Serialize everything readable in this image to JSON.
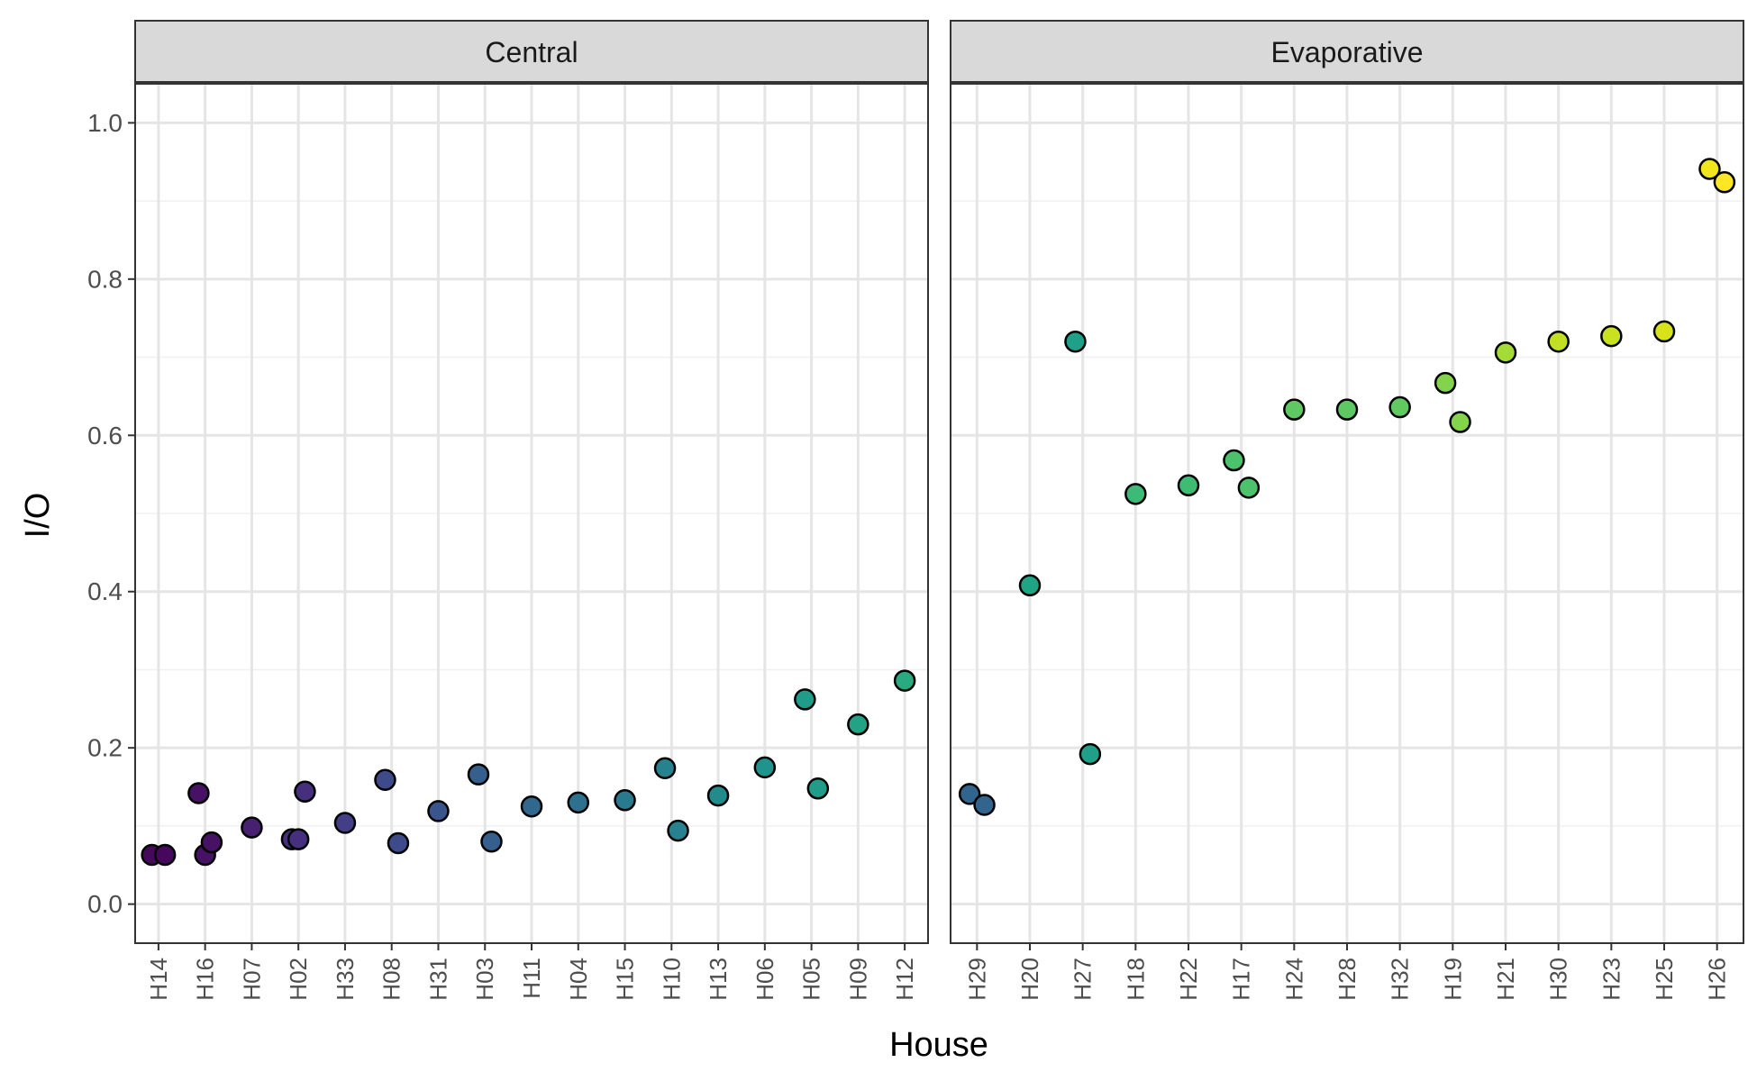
{
  "chart_data": {
    "type": "scatter",
    "xlabel": "House",
    "ylabel": "I/O",
    "ylim": [
      -0.05,
      1.05
    ],
    "y_ticks": [
      "0.0",
      "0.2",
      "0.4",
      "0.6",
      "0.8",
      "1.0"
    ],
    "grid": true,
    "legend": "none",
    "color_scale": "viridis",
    "panels": [
      {
        "name": "Central",
        "categories": [
          "H14",
          "H16",
          "H07",
          "H02",
          "H33",
          "H08",
          "H31",
          "H03",
          "H11",
          "H04",
          "H15",
          "H10",
          "H13",
          "H06",
          "H05",
          "H09",
          "H12"
        ],
        "points": [
          {
            "house": "H14",
            "y": 0.063,
            "color": "#46085c"
          },
          {
            "house": "H14",
            "y": 0.063,
            "color": "#46085c"
          },
          {
            "house": "H16",
            "y": 0.142,
            "color": "#471164"
          },
          {
            "house": "H16",
            "y": 0.063,
            "color": "#471164"
          },
          {
            "house": "H16",
            "y": 0.079,
            "color": "#471164"
          },
          {
            "house": "H07",
            "y": 0.098,
            "color": "#482071"
          },
          {
            "house": "H02",
            "y": 0.083,
            "color": "#46307e"
          },
          {
            "house": "H02",
            "y": 0.083,
            "color": "#46307e"
          },
          {
            "house": "H02",
            "y": 0.144,
            "color": "#46307e"
          },
          {
            "house": "H33",
            "y": 0.104,
            "color": "#433e85"
          },
          {
            "house": "H08",
            "y": 0.159,
            "color": "#3f4a8a"
          },
          {
            "house": "H08",
            "y": 0.078,
            "color": "#3f4a8a"
          },
          {
            "house": "H31",
            "y": 0.119,
            "color": "#3a548c"
          },
          {
            "house": "H03",
            "y": 0.166,
            "color": "#355f8d"
          },
          {
            "house": "H03",
            "y": 0.08,
            "color": "#355f8d"
          },
          {
            "house": "H11",
            "y": 0.125,
            "color": "#31688e"
          },
          {
            "house": "H04",
            "y": 0.13,
            "color": "#2d718e"
          },
          {
            "house": "H15",
            "y": 0.133,
            "color": "#2a7a8e"
          },
          {
            "house": "H10",
            "y": 0.174,
            "color": "#26828e"
          },
          {
            "house": "H10",
            "y": 0.094,
            "color": "#26828e"
          },
          {
            "house": "H13",
            "y": 0.139,
            "color": "#228c8d"
          },
          {
            "house": "H06",
            "y": 0.175,
            "color": "#1f948c"
          },
          {
            "house": "H05",
            "y": 0.262,
            "color": "#1f9d8a"
          },
          {
            "house": "H05",
            "y": 0.148,
            "color": "#1f9d8a"
          },
          {
            "house": "H09",
            "y": 0.23,
            "color": "#23a385"
          },
          {
            "house": "H12",
            "y": 0.286,
            "color": "#2aaa80"
          }
        ]
      },
      {
        "name": "Evaporative",
        "categories": [
          "H29",
          "H20",
          "H27",
          "H18",
          "H22",
          "H17",
          "H24",
          "H28",
          "H32",
          "H19",
          "H21",
          "H30",
          "H23",
          "H25",
          "H26"
        ],
        "points": [
          {
            "house": "H29",
            "y": 0.141,
            "color": "#32658e"
          },
          {
            "house": "H29",
            "y": 0.127,
            "color": "#32658e"
          },
          {
            "house": "H20",
            "y": 0.408,
            "color": "#20a486"
          },
          {
            "house": "H27",
            "y": 0.72,
            "color": "#1fa088"
          },
          {
            "house": "H27",
            "y": 0.192,
            "color": "#1fa088"
          },
          {
            "house": "H18",
            "y": 0.525,
            "color": "#3bbb75"
          },
          {
            "house": "H22",
            "y": 0.536,
            "color": "#3fbc73"
          },
          {
            "house": "H17",
            "y": 0.568,
            "color": "#4cc26c"
          },
          {
            "house": "H17",
            "y": 0.533,
            "color": "#4cc26c"
          },
          {
            "house": "H24",
            "y": 0.633,
            "color": "#5ec962"
          },
          {
            "house": "H28",
            "y": 0.633,
            "color": "#5ec962"
          },
          {
            "house": "H32",
            "y": 0.636,
            "color": "#60ca60"
          },
          {
            "house": "H19",
            "y": 0.667,
            "color": "#84d44b"
          },
          {
            "house": "H19",
            "y": 0.617,
            "color": "#84d44b"
          },
          {
            "house": "H21",
            "y": 0.706,
            "color": "#a5db36"
          },
          {
            "house": "H30",
            "y": 0.72,
            "color": "#c2df23"
          },
          {
            "house": "H23",
            "y": 0.727,
            "color": "#cae11f"
          },
          {
            "house": "H25",
            "y": 0.733,
            "color": "#d8e219"
          },
          {
            "house": "H26",
            "y": 0.941,
            "color": "#f1e51d"
          },
          {
            "house": "H26",
            "y": 0.924,
            "color": "#fde725"
          }
        ]
      }
    ]
  }
}
